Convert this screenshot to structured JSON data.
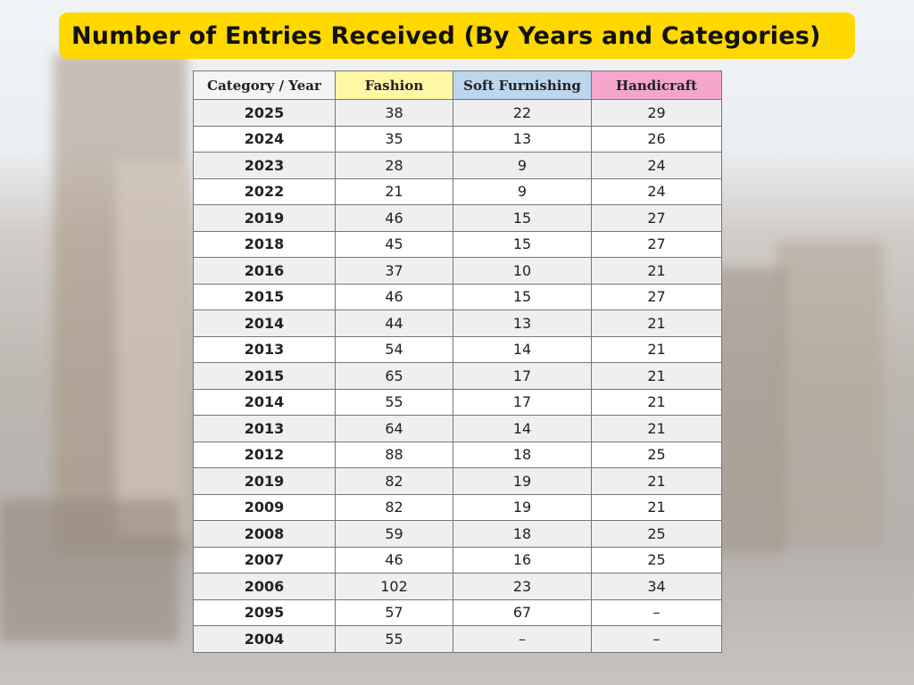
{
  "title": "Number of Entries Received (By Years and Categories)",
  "table": {
    "header": [
      "Category / Year",
      "Fashion",
      "Soft Furnishing",
      "Handicraft"
    ],
    "rows": [
      [
        "2025",
        38,
        22,
        29
      ],
      [
        "2024",
        35,
        13,
        26
      ],
      [
        "2023",
        28,
        9,
        24
      ],
      [
        "2022",
        21,
        9,
        24
      ],
      [
        "2019",
        46,
        15,
        27
      ],
      [
        "2018",
        45,
        15,
        27
      ],
      [
        "2016",
        37,
        10,
        21
      ],
      [
        "2015",
        46,
        15,
        27
      ],
      [
        "2014",
        44,
        13,
        21
      ],
      [
        "2013",
        54,
        14,
        21
      ],
      [
        "2015",
        65,
        17,
        21
      ],
      [
        "2014",
        55,
        17,
        21
      ],
      [
        "2013",
        64,
        14,
        21
      ],
      [
        "2012",
        88,
        18,
        25
      ],
      [
        "2019",
        82,
        19,
        21
      ],
      [
        "2009",
        82,
        19,
        21
      ],
      [
        "2008",
        59,
        18,
        25
      ],
      [
        "2007",
        46,
        16,
        25
      ],
      [
        "2006",
        102,
        23,
        34
      ],
      [
        "2095",
        57,
        67,
        "–"
      ],
      [
        "2004",
        55,
        "–",
        "–"
      ]
    ]
  }
}
